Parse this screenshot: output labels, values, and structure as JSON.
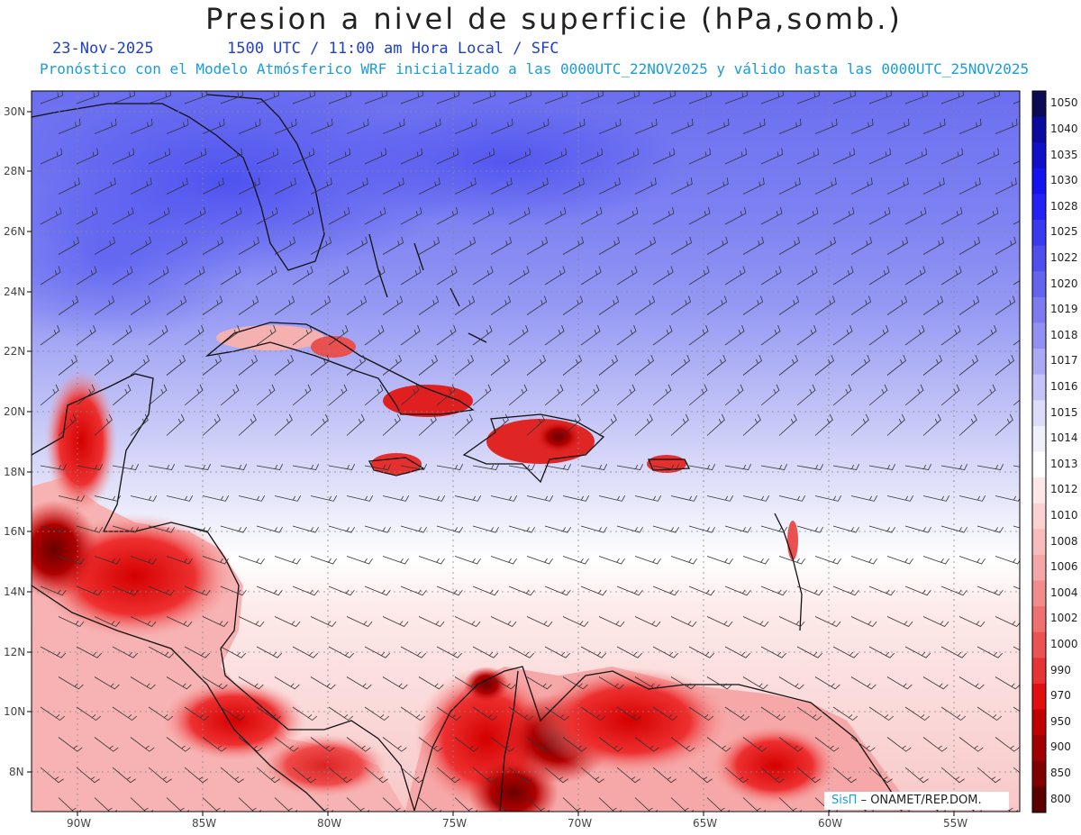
{
  "header": {
    "title": "Presion a nivel de superficie (hPa,somb.)",
    "date": "23-Nov-2025",
    "time_line": "1500 UTC / 11:00 am Hora Local / SFC",
    "model_line": "Pronóstico con el Modelo Atmósferico WRF inicializado a las 0000UTC_22NOV2025 y válido hasta las  0000UTC_25NOV2025"
  },
  "axes": {
    "lat_labels": [
      "30N",
      "28N",
      "26N",
      "24N",
      "22N",
      "20N",
      "18N",
      "16N",
      "14N",
      "12N",
      "10N",
      "8N"
    ],
    "lon_labels": [
      "90W",
      "85W",
      "80W",
      "75W",
      "70W",
      "65W",
      "60W",
      "55W"
    ]
  },
  "colorbar": {
    "levels": [
      "1050",
      "1040",
      "1035",
      "1030",
      "1028",
      "1025",
      "1022",
      "1020",
      "1019",
      "1018",
      "1017",
      "1016",
      "1015",
      "1014",
      "1013",
      "1012",
      "1010",
      "1008",
      "1006",
      "1004",
      "1002",
      "1000",
      "990",
      "970",
      "950",
      "900",
      "850",
      "800"
    ],
    "colors": [
      "#0a0a55",
      "#0a0a9e",
      "#0f10c8",
      "#1414f0",
      "#2323f5",
      "#3a3af0",
      "#4f4fee",
      "#6464ee",
      "#7c7cf0",
      "#9191f2",
      "#aaaaf4",
      "#c4c4f6",
      "#dcdcf8",
      "#f0f0fb",
      "#ffffff",
      "#fde7e7",
      "#fbd2d2",
      "#f8bcbc",
      "#f5a6a6",
      "#f28c8c",
      "#ef7070",
      "#eb5252",
      "#e63333",
      "#e01010",
      "#c00000",
      "#a00000",
      "#800000",
      "#5a0000"
    ]
  },
  "credit": {
    "brand": "SisΠ",
    "text": "– ONAMET/REP.DOM."
  },
  "colors": {
    "high_pressure": "#5a5ef0",
    "low_pressure": "#e62020",
    "land_outline": "#111111",
    "wind_barb": "#333333"
  }
}
